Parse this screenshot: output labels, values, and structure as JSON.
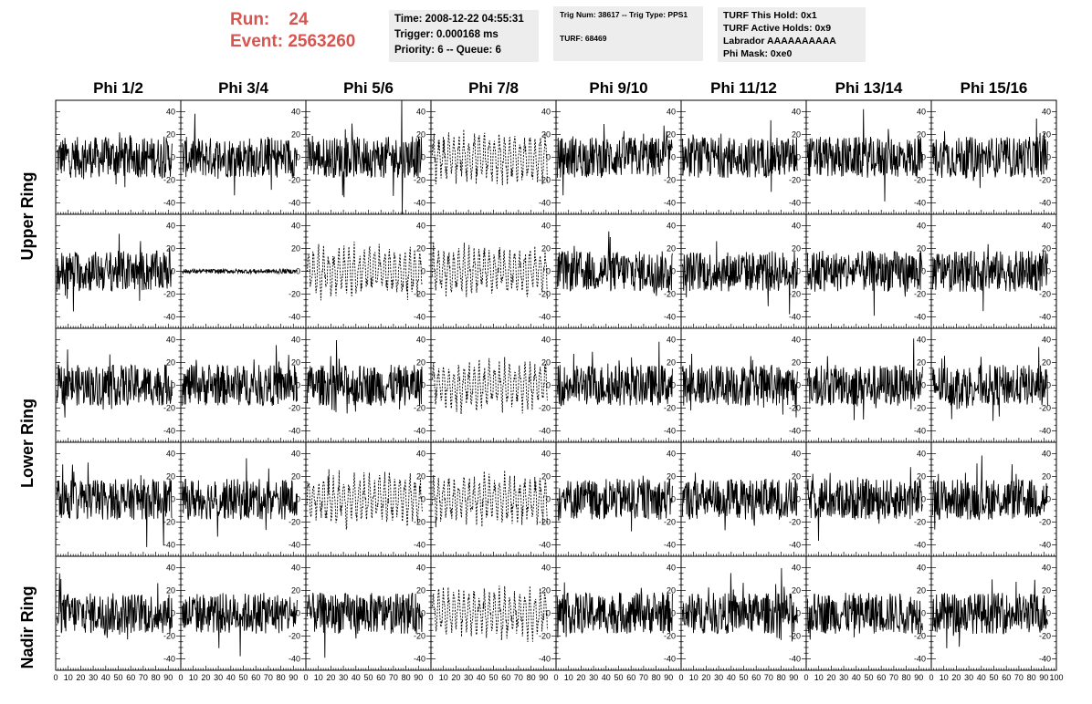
{
  "header": {
    "run_label": "Run:",
    "run_value": "24",
    "event_label": "Event:",
    "event_value": "2563260",
    "accent_color": "#d9534f"
  },
  "time_box": {
    "time": "Time: 2008-12-22 04:55:31",
    "trigger": "Trigger: 0.000168 ms",
    "priority": "Priority: 6 -- Queue: 6"
  },
  "trig_box": {
    "trig": "Trig Num: 38617 -- Trig Type: PPS1",
    "turf": "TURF: 68469"
  },
  "turf_box": {
    "this_hold": "TURF This Hold: 0x1",
    "active_holds": "TURF Active Holds: 0x9",
    "labrador": "Labrador AAAAAAAAAA",
    "phi_mask": "Phi Mask: 0xe0"
  },
  "columns": [
    "Phi 1/2",
    "Phi 3/4",
    "Phi 5/6",
    "Phi 7/8",
    "Phi 9/10",
    "Phi 11/12",
    "Phi 13/14",
    "Phi 15/16"
  ],
  "rings": [
    "Upper Ring",
    "Lower Ring",
    "Nadir Ring"
  ],
  "chart_data": {
    "type": "line",
    "rows": 5,
    "cols": 8,
    "xlim": [
      0,
      100
    ],
    "ylim": [
      -50,
      50
    ],
    "x_ticks": [
      "0",
      "10",
      "20",
      "30",
      "40",
      "50",
      "60",
      "70",
      "80",
      "90",
      "100"
    ],
    "y_ticks": [
      "40",
      "20",
      "0",
      "-20",
      "-40"
    ],
    "grid": false,
    "trace_color": "#000000",
    "dashed_cells": [
      [
        0,
        3
      ],
      [
        1,
        2
      ],
      [
        1,
        3
      ],
      [
        2,
        3
      ],
      [
        3,
        2
      ],
      [
        3,
        3
      ],
      [
        4,
        3
      ]
    ],
    "flat_cells": [
      [
        1,
        1
      ]
    ],
    "spike_cells": [
      [
        0,
        2
      ]
    ]
  }
}
